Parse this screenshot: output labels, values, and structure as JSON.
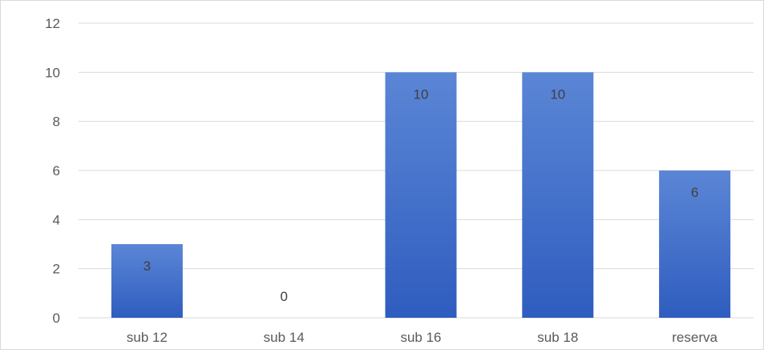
{
  "chart_data": {
    "type": "bar",
    "categories": [
      "sub 12",
      "sub 14",
      "sub 16",
      "sub 18",
      "reserva"
    ],
    "values": [
      3,
      0,
      10,
      10,
      6
    ],
    "data_labels": [
      "3",
      "0",
      "10",
      "10",
      "6"
    ],
    "title": "",
    "xlabel": "",
    "ylabel": "",
    "ylim": [
      0,
      12
    ],
    "yticks": [
      0,
      2,
      4,
      6,
      8,
      10,
      12
    ],
    "grid": true,
    "legend": "none",
    "colors": {
      "bar_top": "#5b86d6",
      "bar_bottom": "#2f5dbf",
      "grid": "#d9d9d9"
    }
  }
}
